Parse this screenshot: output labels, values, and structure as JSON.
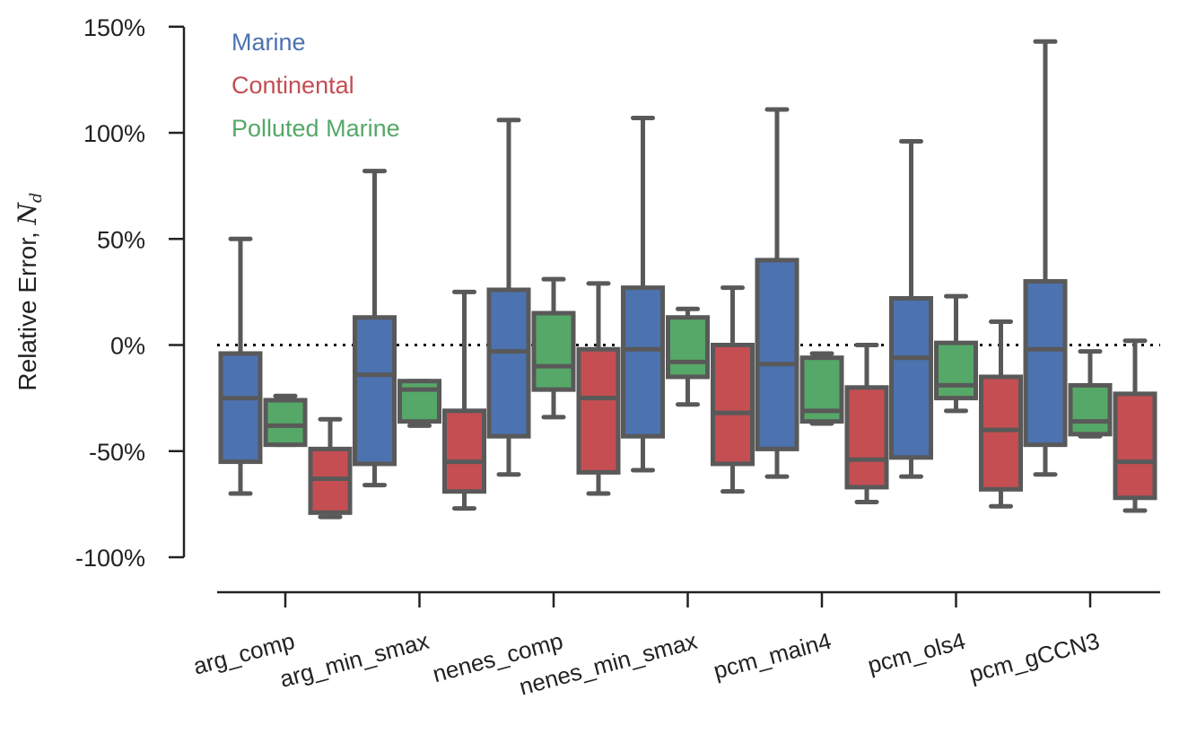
{
  "chart_data": {
    "type": "box",
    "ylabel": "Relative Error, ",
    "ylabel_symbol": "N",
    "ylabel_subscript": "d",
    "yticks": [
      "150%",
      "100%",
      "50%",
      "0%",
      "-50%",
      "-100%"
    ],
    "ytick_values": [
      150,
      100,
      50,
      0,
      -50,
      -100
    ],
    "ylim": [
      -100,
      150
    ],
    "reference_line": 0,
    "legend_placement": "top-left",
    "categories": [
      "arg_comp",
      "arg_min_smax",
      "nenes_comp",
      "nenes_min_smax",
      "pcm_main4",
      "pcm_ols4",
      "pcm_gCCN3"
    ],
    "series": [
      {
        "name": "Marine",
        "color": "#4C72B0",
        "boxes": [
          {
            "whislo": -70,
            "q1": -55,
            "med": -25,
            "q3": -4,
            "whishi": 50
          },
          {
            "whislo": -66,
            "q1": -56,
            "med": -14,
            "q3": 13,
            "whishi": 82
          },
          {
            "whislo": -61,
            "q1": -43,
            "med": -3,
            "q3": 26,
            "whishi": 106
          },
          {
            "whislo": -59,
            "q1": -43,
            "med": -2,
            "q3": 27,
            "whishi": 107
          },
          {
            "whislo": -62,
            "q1": -49,
            "med": -9,
            "q3": 40,
            "whishi": 111
          },
          {
            "whislo": -62,
            "q1": -53,
            "med": -6,
            "q3": 22,
            "whishi": 96
          },
          {
            "whislo": -61,
            "q1": -47,
            "med": -2,
            "q3": 30,
            "whishi": 143
          }
        ]
      },
      {
        "name": "Polluted Marine",
        "color": "#55A868",
        "boxes": [
          {
            "whislo": -47,
            "q1": -47,
            "med": -38,
            "q3": -26,
            "whishi": -24
          },
          {
            "whislo": -38,
            "q1": -36,
            "med": -21,
            "q3": -17,
            "whishi": -17
          },
          {
            "whislo": -34,
            "q1": -21,
            "med": -10,
            "q3": 15,
            "whishi": 31
          },
          {
            "whislo": -28,
            "q1": -15,
            "med": -8,
            "q3": 13,
            "whishi": 17
          },
          {
            "whislo": -37,
            "q1": -36,
            "med": -31,
            "q3": -6,
            "whishi": -4
          },
          {
            "whislo": -31,
            "q1": -25,
            "med": -19,
            "q3": 1,
            "whishi": 23
          },
          {
            "whislo": -43,
            "q1": -42,
            "med": -36,
            "q3": -19,
            "whishi": -3
          }
        ]
      },
      {
        "name": "Continental",
        "color": "#C44E52",
        "boxes": [
          {
            "whislo": -81,
            "q1": -79,
            "med": -63,
            "q3": -49,
            "whishi": -35
          },
          {
            "whislo": -77,
            "q1": -69,
            "med": -55,
            "q3": -31,
            "whishi": 25
          },
          {
            "whislo": -70,
            "q1": -60,
            "med": -25,
            "q3": -2,
            "whishi": 29
          },
          {
            "whislo": -69,
            "q1": -56,
            "med": -32,
            "q3": 0,
            "whishi": 27
          },
          {
            "whislo": -74,
            "q1": -67,
            "med": -54,
            "q3": -20,
            "whishi": 0
          },
          {
            "whislo": -76,
            "q1": -68,
            "med": -40,
            "q3": -15,
            "whishi": 11
          },
          {
            "whislo": -78,
            "q1": -72,
            "med": -55,
            "q3": -23,
            "whishi": 2
          }
        ]
      }
    ],
    "legend": [
      {
        "label": "Marine",
        "color": "#4C72B0"
      },
      {
        "label": "Continental",
        "color": "#C44E52"
      },
      {
        "label": "Polluted Marine",
        "color": "#55A868"
      }
    ]
  }
}
